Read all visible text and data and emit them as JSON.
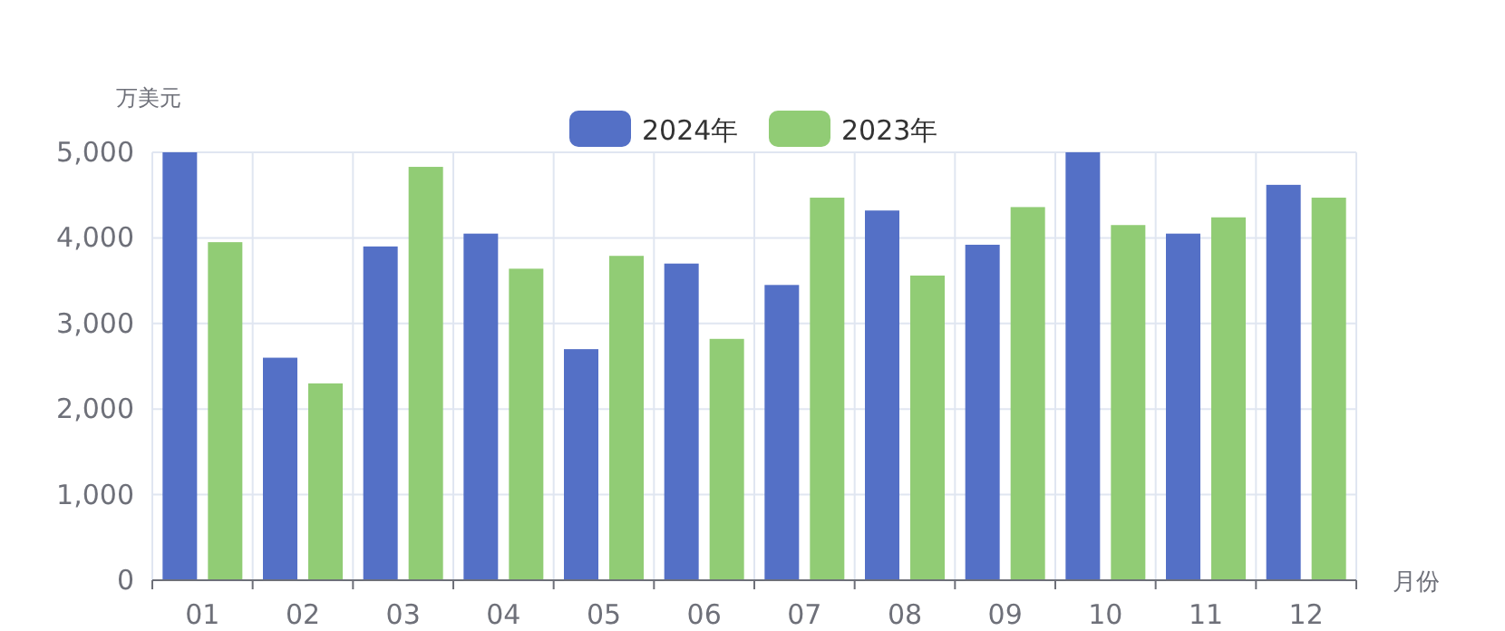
{
  "chart_data": {
    "type": "bar",
    "ylabel": "万美元",
    "xlabel": "月份",
    "categories": [
      "01",
      "02",
      "03",
      "04",
      "05",
      "06",
      "07",
      "08",
      "09",
      "10",
      "11",
      "12"
    ],
    "series": [
      {
        "name": "2024年",
        "color": "#5470c6",
        "values": [
          5000,
          2600,
          3900,
          4050,
          2700,
          3700,
          3450,
          4320,
          3920,
          5000,
          4050,
          4620
        ]
      },
      {
        "name": "2023年",
        "color": "#91cc75",
        "values": [
          3950,
          2300,
          4830,
          3640,
          3790,
          2820,
          4470,
          3560,
          4360,
          4150,
          4240,
          4470
        ]
      }
    ],
    "ylim": [
      0,
      5000
    ],
    "yticks": [
      {
        "value": 0,
        "label": "0"
      },
      {
        "value": 1000,
        "label": "1,000"
      },
      {
        "value": 2000,
        "label": "2,000"
      },
      {
        "value": 3000,
        "label": "3,000"
      },
      {
        "value": 4000,
        "label": "4,000"
      },
      {
        "value": 5000,
        "label": "5,000"
      }
    ],
    "grid": true,
    "legend": "top"
  }
}
